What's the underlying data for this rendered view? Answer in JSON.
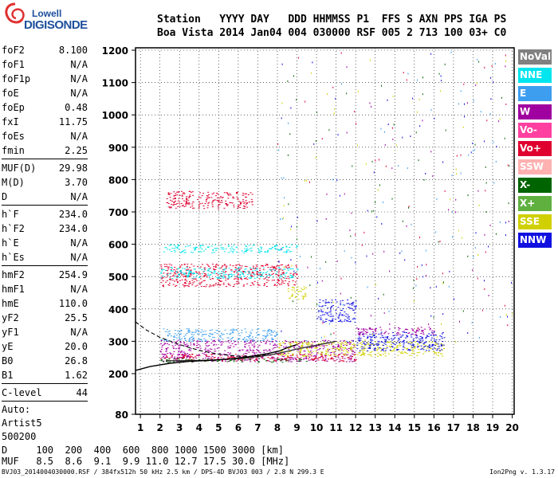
{
  "logo": {
    "line1": "Lowell",
    "line2": "DIGISONDE"
  },
  "header": {
    "row1": "Station   YYYY DAY   DDD HHMMSS P1  FFS S AXN PPS IGA PS",
    "row2": "Boa Vista 2014 Jan04 004 030000 RSF 005 2 713 100 03+ C0"
  },
  "params": [
    {
      "label": "foF2",
      "value": "8.100"
    },
    {
      "label": "foF1",
      "value": "N/A"
    },
    {
      "label": "foF1p",
      "value": "N/A"
    },
    {
      "label": "foE",
      "value": "N/A"
    },
    {
      "label": "foEp",
      "value": "0.48"
    },
    {
      "label": "fxI",
      "value": "11.75"
    },
    {
      "label": "foEs",
      "value": "N/A"
    },
    {
      "label": "fmin",
      "value": "2.25"
    },
    {
      "sep": true
    },
    {
      "label": "MUF(D)",
      "value": "29.98"
    },
    {
      "label": "M(D)",
      "value": "3.70"
    },
    {
      "label": "D",
      "value": "N/A"
    },
    {
      "sep": true
    },
    {
      "label": "h`F",
      "value": "234.0"
    },
    {
      "label": "h`F2",
      "value": "234.0"
    },
    {
      "label": "h`E",
      "value": "N/A"
    },
    {
      "label": "h`Es",
      "value": "N/A"
    },
    {
      "sep": true
    },
    {
      "label": "hmF2",
      "value": "254.9"
    },
    {
      "label": "hmF1",
      "value": "N/A"
    },
    {
      "label": "hmE",
      "value": "110.0"
    },
    {
      "label": "yF2",
      "value": "25.5"
    },
    {
      "label": "yF1",
      "value": "N/A"
    },
    {
      "label": "yE",
      "value": "20.0"
    },
    {
      "label": "B0",
      "value": "26.8"
    },
    {
      "label": "B1",
      "value": "1.62"
    },
    {
      "sep": true
    },
    {
      "label": "C-level",
      "value": "44"
    },
    {
      "sep": true
    }
  ],
  "extra": [
    "Auto:",
    "Artist5",
    "500200"
  ],
  "legend": [
    {
      "label": "NoVal",
      "color": "#808080"
    },
    {
      "label": "NNE",
      "color": "#00e5ee"
    },
    {
      "label": "E",
      "color": "#3d9ef0"
    },
    {
      "label": "W",
      "color": "#a000a0"
    },
    {
      "label": "Vo-",
      "color": "#ff40a0"
    },
    {
      "label": "Vo+",
      "color": "#e00030"
    },
    {
      "label": "SSW",
      "color": "#ffb0b0"
    },
    {
      "label": "X-",
      "color": "#006400"
    },
    {
      "label": "X+",
      "color": "#60b040"
    },
    {
      "label": "SSE",
      "color": "#d0d000"
    },
    {
      "label": "NNW",
      "color": "#1010e0"
    }
  ],
  "bottom": {
    "row1": "D     100  200  400  600  800 1000 1500 3000 [km]",
    "row2": "MUF   8.5  8.6  9.1  9.9 11.0 12.7 17.5 30.0 [MHz]"
  },
  "footer": "BVJ03_2014004030000.RSF / 384fx512h 50 kHz 2.5 km / DPS-4D BVJ03 003 / 2.8 N 299.3 E",
  "version": "Ion2Png v. 1.3.17",
  "chart_data": {
    "type": "scatter",
    "x_ticks": [
      1,
      2,
      3,
      4,
      5,
      6,
      7,
      8,
      9,
      10,
      11,
      12,
      13,
      14,
      15,
      16,
      17,
      18,
      19,
      20
    ],
    "y_ticks": [
      80,
      200,
      300,
      400,
      500,
      600,
      700,
      800,
      900,
      1000,
      1100,
      1200
    ],
    "xlim": [
      0.75,
      20.1
    ],
    "ylim": [
      80,
      1210
    ],
    "grid": true,
    "traces": [
      {
        "name": "F2 trace",
        "points": [
          [
            2.3,
            240
          ],
          [
            3,
            240
          ],
          [
            4,
            241
          ],
          [
            5,
            243
          ],
          [
            6,
            246
          ],
          [
            7,
            252
          ],
          [
            8,
            262
          ],
          [
            9,
            276
          ],
          [
            10,
            288
          ],
          [
            11,
            300
          ]
        ]
      },
      {
        "name": "Profile",
        "points": [
          [
            0.75,
            210
          ],
          [
            1.5,
            222
          ],
          [
            2.5,
            232
          ],
          [
            3.5,
            238
          ],
          [
            4.5,
            241
          ],
          [
            5.5,
            245
          ],
          [
            6.5,
            252
          ],
          [
            7.5,
            262
          ],
          [
            8.1,
            270
          ],
          [
            8.5,
            280
          ],
          [
            9,
            290
          ]
        ]
      },
      {
        "name": "Profile extrapolation",
        "points": [
          [
            0.75,
            360
          ],
          [
            1.3,
            335
          ],
          [
            2,
            312
          ],
          [
            3,
            290
          ],
          [
            4,
            272
          ],
          [
            5,
            260
          ],
          [
            6,
            254
          ],
          [
            7,
            254
          ],
          [
            7.6,
            262
          ]
        ]
      }
    ],
    "echo_bands": [
      {
        "x": [
          2,
          12
        ],
        "y": [
          238,
          305
        ],
        "color": "#a000a0"
      },
      {
        "x": [
          2,
          12
        ],
        "y": [
          240,
          262
        ],
        "color": "#e00030"
      },
      {
        "x": [
          2,
          9.5
        ],
        "y": [
          236,
          248
        ],
        "color": "#006400"
      },
      {
        "x": [
          8,
          16.5
        ],
        "y": [
          255,
          300
        ],
        "color": "#d0d000"
      },
      {
        "x": [
          12,
          16.5
        ],
        "y": [
          270,
          330
        ],
        "color": "#1010e0"
      },
      {
        "x": [
          12,
          16
        ],
        "y": [
          320,
          345
        ],
        "color": "#a000a0"
      },
      {
        "x": [
          2,
          9
        ],
        "y": [
          470,
          540
        ],
        "color": "#e00030"
      },
      {
        "x": [
          2,
          9
        ],
        "y": [
          495,
          530
        ],
        "color": "#00e5ee"
      },
      {
        "x": [
          8.5,
          9.5
        ],
        "y": [
          430,
          470
        ],
        "color": "#d0d000"
      },
      {
        "x": [
          10,
          12
        ],
        "y": [
          360,
          430
        ],
        "color": "#1010e0"
      },
      {
        "x": [
          2.3,
          6.7
        ],
        "y": [
          710,
          765
        ],
        "color": "#e00030"
      },
      {
        "x": [
          2,
          8
        ],
        "y": [
          300,
          340
        ],
        "color": "#3d9ef0"
      },
      {
        "x": [
          2,
          9
        ],
        "y": [
          575,
          600
        ],
        "color": "#00e5ee"
      }
    ],
    "scattered_echo_colors": [
      "#a000a0",
      "#1010e0",
      "#e00030",
      "#006400",
      "#d0d000",
      "#3d9ef0"
    ]
  }
}
